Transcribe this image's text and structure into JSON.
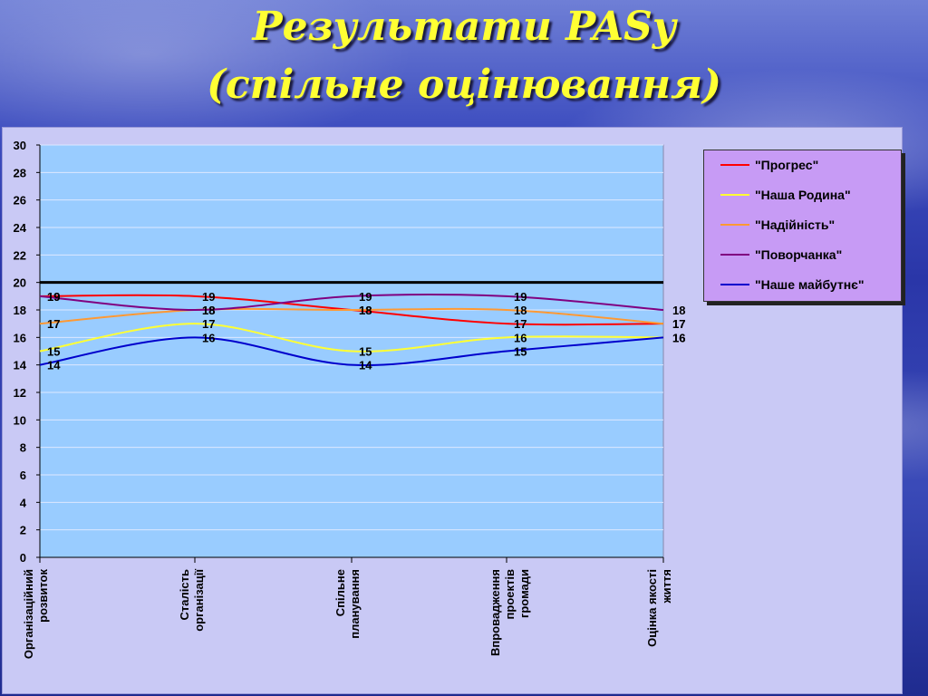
{
  "title_line1": "Результати PASy",
  "title_line2": "(спільне оцінювання)",
  "chart_data": {
    "type": "line",
    "categories": [
      [
        "Організаційний",
        "розвиток"
      ],
      [
        "Сталість",
        "організації"
      ],
      [
        "Спільне",
        "планування"
      ],
      [
        "Впровадження",
        "проектів",
        "громади"
      ],
      [
        "Оцінка якості",
        "життя"
      ]
    ],
    "ylim": [
      0,
      30
    ],
    "yticks": [
      0,
      2,
      4,
      6,
      8,
      10,
      12,
      14,
      16,
      18,
      20,
      22,
      24,
      26,
      28,
      30
    ],
    "reference_line": 20,
    "plot_background": "#99ccff",
    "legend_position": "right",
    "series": [
      {
        "name": "\"Прогрес\"",
        "color": "#ff0000",
        "values": [
          19,
          19,
          18,
          17,
          17
        ]
      },
      {
        "name": "\"Наша Родина\"",
        "color": "#ffff33",
        "values": [
          15,
          17,
          15,
          16,
          16
        ]
      },
      {
        "name": "\"Надійність\"",
        "color": "#ff9933",
        "values": [
          17,
          18,
          18,
          18,
          17
        ]
      },
      {
        "name": "\"Поворчанка\"",
        "color": "#800080",
        "values": [
          19,
          18,
          19,
          19,
          18
        ]
      },
      {
        "name": "\"Наше майбутнє\"",
        "color": "#0000cc",
        "values": [
          14,
          16,
          14,
          15,
          16
        ]
      }
    ]
  }
}
